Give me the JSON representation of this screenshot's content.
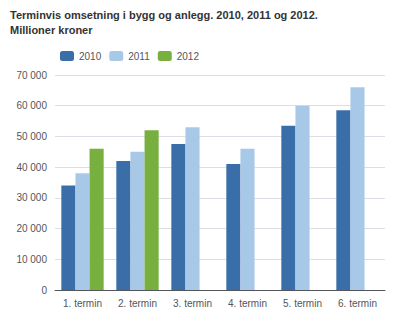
{
  "chart_data": {
    "type": "bar",
    "title": "Terminvis omsetning i bygg og anlegg. 2010, 2011 og 2012.",
    "subtitle": "Millioner kroner",
    "categories": [
      "1. termin",
      "2. termin",
      "3. termin",
      "4. termin",
      "5. termin",
      "6. termin"
    ],
    "series": [
      {
        "name": "2010",
        "color": "#3A6EA8",
        "values": [
          34000,
          42000,
          47500,
          41000,
          53500,
          58500
        ]
      },
      {
        "name": "2011",
        "color": "#A8C8E8",
        "values": [
          38000,
          45000,
          53000,
          46000,
          60000,
          66000
        ]
      },
      {
        "name": "2012",
        "color": "#78B040",
        "values": [
          46000,
          52000,
          null,
          null,
          null,
          null
        ]
      }
    ],
    "ylim": [
      0,
      70000
    ],
    "yticks": [
      0,
      {
        "value": 10000,
        "label": "10 000"
      },
      {
        "value": 20000,
        "label": "20 000"
      },
      {
        "value": 30000,
        "label": "30 000"
      },
      {
        "value": 40000,
        "label": "40 000"
      },
      {
        "value": 50000,
        "label": "50 000"
      },
      {
        "value": 60000,
        "label": "60 000"
      },
      {
        "value": 70000,
        "label": "70 000"
      }
    ],
    "grid": true,
    "legend": "upper left"
  }
}
